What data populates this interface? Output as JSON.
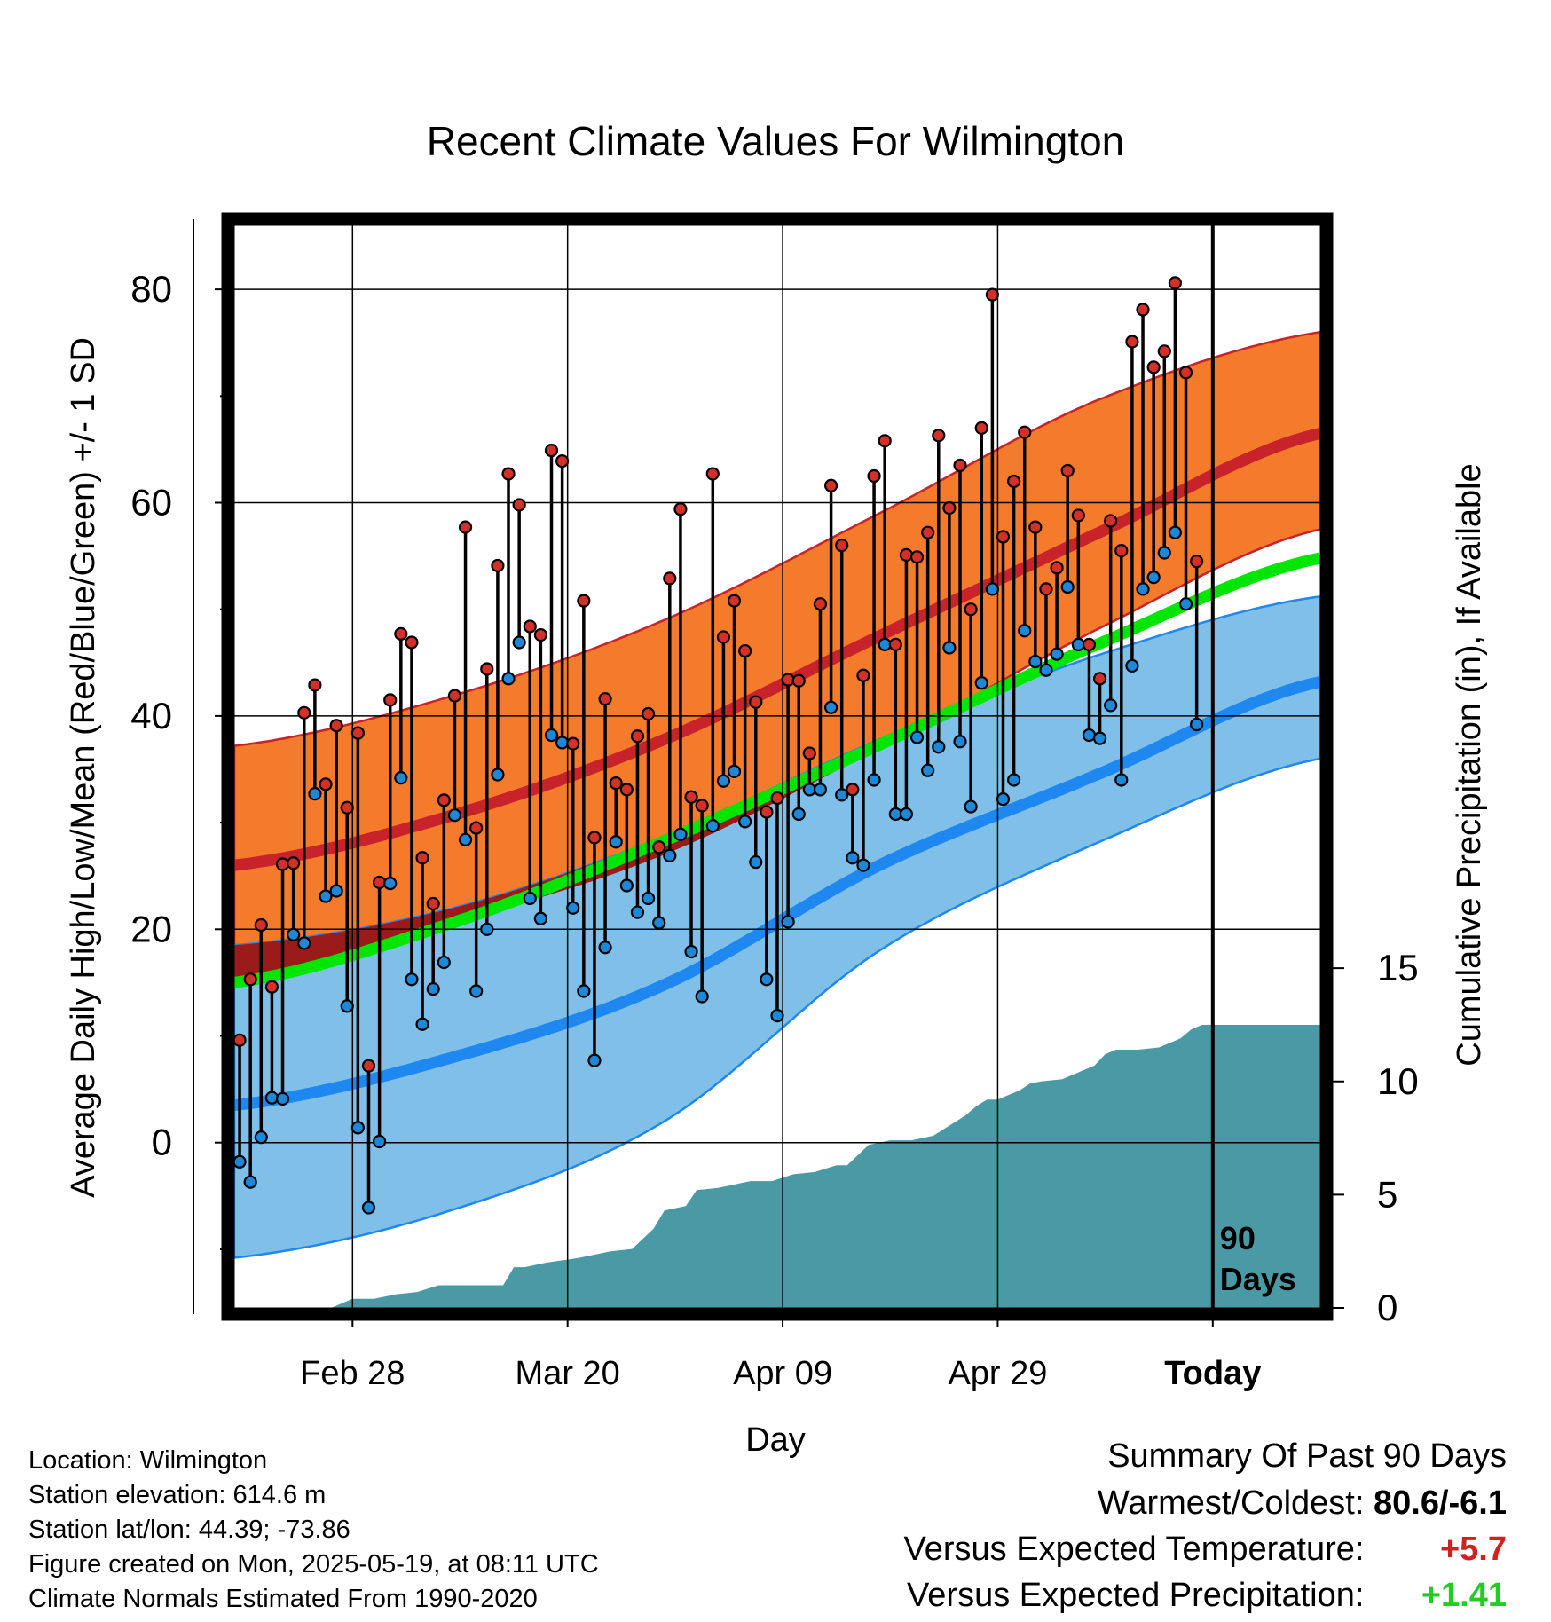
{
  "chart_data": {
    "type": "line",
    "title": "Recent Climate Values For Wilmington",
    "xlabel": "Day",
    "ylabel": "Average Daily High/Low/Mean (Red/Blue/Green) +/- 1 SD",
    "y2label": "Cumulative Precipitation (in), If Available",
    "x_tick_labels": [
      "Feb 28",
      "Mar 20",
      "Apr 09",
      "Apr 29",
      "Today"
    ],
    "x_tick_days": [
      11,
      31,
      51,
      71,
      91
    ],
    "xlim": [
      0,
      101
    ],
    "y_ticks": [
      0,
      20,
      40,
      60,
      80
    ],
    "ylim": [
      -15.5,
      86
    ],
    "y2_ticks": [
      0,
      5,
      10,
      15
    ],
    "y2lim": [
      0,
      47.8
    ],
    "today_day": 91,
    "today_label": [
      "90",
      "Days"
    ],
    "normals": {
      "days": [
        0,
        20,
        40,
        60,
        80,
        101
      ],
      "high_mean": [
        26,
        30.6,
        37.8,
        47.5,
        57,
        66.5
      ],
      "high_upper": [
        37.2,
        41.8,
        49,
        59,
        69.5,
        76
      ],
      "high_lower": [
        15.2,
        20.5,
        27,
        37,
        48,
        57.5
      ],
      "mean_mean": [
        15,
        20.5,
        28.3,
        37.3,
        46.6,
        54.8
      ],
      "low_mean": [
        3.5,
        7.9,
        14.8,
        26,
        34.4,
        43.2
      ],
      "low_upper": [
        18.5,
        21.9,
        28.7,
        37.8,
        45.6,
        51.2
      ],
      "low_lower": [
        -10.8,
        -6.4,
        2,
        18,
        28,
        36
      ]
    },
    "series": [
      {
        "name": "High",
        "values": [
          9.6,
          15.3,
          20.4,
          14.6,
          26.1,
          26.2,
          40.3,
          42.9,
          33.6,
          39.1,
          31.4,
          38.4,
          7.2,
          24.4,
          41.5,
          47.7,
          46.9,
          26.7,
          22.4,
          32.1,
          41.9,
          57.7,
          29.5,
          44.4,
          54.1,
          62.7,
          59.8,
          48.4,
          47.6,
          64.9,
          63.9,
          37.4,
          50.8,
          28.6,
          41.6,
          33.7,
          33.1,
          38.1,
          40.2,
          27.7,
          52.9,
          59.4,
          32.4,
          31.6,
          62.7,
          47.4,
          50.8,
          46.1,
          41.3,
          31,
          32.3,
          43.4,
          43.3,
          36.5,
          50.5,
          61.6,
          56,
          33.1,
          43.8,
          62.5,
          65.8,
          46.7,
          55.1,
          54.9,
          57.2,
          66.3,
          59.5,
          63.5,
          50,
          67,
          79.5,
          56.8,
          62,
          66.6,
          57.7,
          51.9,
          53.9,
          63,
          58.8,
          46.7,
          43.5,
          58.3,
          55.5,
          75.1,
          78.1,
          72.7,
          74.2,
          80.6,
          72.2,
          54.5
        ]
      },
      {
        "name": "Low",
        "values": [
          -1.8,
          -3.7,
          0.5,
          4.2,
          4.1,
          19.5,
          18.7,
          32.7,
          23.1,
          23.6,
          12.8,
          1.4,
          -6.1,
          0.1,
          24.3,
          34.2,
          15.3,
          11.1,
          14.4,
          16.9,
          30.7,
          28.4,
          14.2,
          20,
          34.5,
          43.5,
          46.9,
          22.9,
          21,
          38.2,
          37.5,
          22,
          14.2,
          7.7,
          18.3,
          28.2,
          24.1,
          21.6,
          22.9,
          20.6,
          26.9,
          28.9,
          17.9,
          13.7,
          29.7,
          33.9,
          34.8,
          30.1,
          26.3,
          15.3,
          11.9,
          20.7,
          30.8,
          33.1,
          33.1,
          40.8,
          32.6,
          26.7,
          26,
          34,
          46.7,
          30.8,
          30.8,
          38,
          34.9,
          37.1,
          46.4,
          37.6,
          31.5,
          43.1,
          51.9,
          32.2,
          34,
          48,
          45.1,
          44.3,
          45.8,
          52.1,
          46.7,
          38.2,
          37.9,
          41,
          34,
          44.7,
          51.9,
          53,
          55.3,
          57.2,
          50.5,
          39.2
        ]
      },
      {
        "name": "Cumulative Precipitation",
        "days": [
          0,
          9,
          10,
          11,
          13,
          15,
          17,
          19,
          21,
          23,
          25,
          26,
          27,
          29,
          32,
          35,
          37,
          39,
          40,
          41,
          42,
          43,
          45,
          46,
          47,
          48,
          50,
          52,
          54,
          56,
          57,
          59,
          60,
          61,
          63,
          65,
          67,
          68,
          69,
          70,
          71,
          73,
          74,
          75,
          77,
          79,
          80,
          81,
          82,
          84,
          86,
          88,
          89,
          90,
          91,
          101
        ],
        "values": [
          0,
          0,
          0.2,
          0.4,
          0.4,
          0.6,
          0.7,
          1,
          1,
          1,
          1,
          1.8,
          1.8,
          2,
          2.2,
          2.5,
          2.6,
          3.5,
          4.3,
          4.4,
          4.5,
          5.2,
          5.3,
          5.4,
          5.5,
          5.6,
          5.6,
          5.9,
          6,
          6.3,
          6.3,
          7.2,
          7.3,
          7.4,
          7.4,
          7.6,
          8.2,
          8.5,
          8.9,
          9.2,
          9.2,
          9.6,
          9.9,
          10,
          10.1,
          10.5,
          10.7,
          11.2,
          11.4,
          11.4,
          11.5,
          11.9,
          12.3,
          12.5,
          12.5,
          12.5
        ]
      }
    ],
    "colors": {
      "high_band": "#f47a2c",
      "high_line": "#c8232b",
      "mean_line": "#00e600",
      "low_band": "#80c0e8",
      "low_line": "#1e88f0",
      "precip": "#4a9aa5",
      "overlap_band": "#9b1b1b",
      "high_marker": "#d23028",
      "low_marker": "#1e88d8"
    }
  },
  "info": {
    "location": "Location: Wilmington",
    "elevation": "Station elevation: 614.6 m",
    "latlon": "Station lat/lon: 44.39; -73.86",
    "created": "Figure created on Mon, 2025-05-19, at 08:11 UTC",
    "normals": "Climate Normals Estimated From 1990-2020"
  },
  "summary": {
    "heading": "Summary Of Past 90 Days",
    "warmest_label": "Warmest/Coldest:",
    "warmest_value": "80.6/-6.1",
    "temp_label": "Versus Expected Temperature:",
    "temp_value": "+5.7",
    "temp_color": "#d42020",
    "precip_label": "Versus Expected Precipitation:",
    "precip_value": "+1.41",
    "precip_color": "#22cc22"
  }
}
